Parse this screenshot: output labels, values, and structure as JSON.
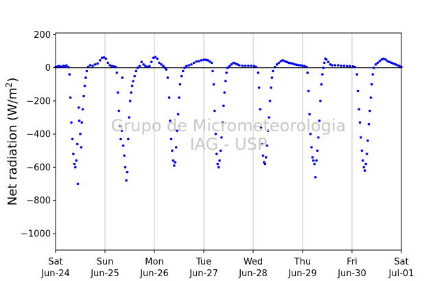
{
  "chart_data": {
    "type": "scatter",
    "title": "",
    "ylabel": "Net radiation (W/m$^2$)",
    "ylabel_parts": {
      "main": "Net radiation (W/m",
      "sup": "2",
      "close": ")"
    },
    "xlabel": "",
    "watermark": [
      "Grupo de Micrometeorologia",
      "IAG - USP"
    ],
    "ylim": [
      -1100,
      210
    ],
    "xlim": [
      0,
      7
    ],
    "yticks": [
      200,
      0,
      -200,
      -400,
      -600,
      -800,
      -1000
    ],
    "ytick_labels": [
      "200",
      "0",
      "−200",
      "−400",
      "−600",
      "−800",
      "−1000"
    ],
    "xticks": [
      {
        "x": 0,
        "day": "Sat",
        "date": "Jun-24"
      },
      {
        "x": 1,
        "day": "Sun",
        "date": "Jun-25"
      },
      {
        "x": 2,
        "day": "Mon",
        "date": "Jun-26"
      },
      {
        "x": 3,
        "day": "Tue",
        "date": "Jun-27"
      },
      {
        "x": 4,
        "day": "Wed",
        "date": "Jun-28"
      },
      {
        "x": 5,
        "day": "Thu",
        "date": "Jun-29"
      },
      {
        "x": 6,
        "day": "Fri",
        "date": "Jun-30"
      },
      {
        "x": 7,
        "day": "Sat",
        "date": "Jul-01"
      }
    ],
    "grid": "vertical",
    "zero_line": true,
    "series": [
      {
        "color": "#0000ff",
        "points": [
          [
            0.0,
            5
          ],
          [
            0.04,
            8
          ],
          [
            0.08,
            10
          ],
          [
            0.12,
            6
          ],
          [
            0.16,
            12
          ],
          [
            0.19,
            8
          ],
          [
            0.22,
            14
          ],
          [
            0.26,
            4
          ],
          [
            0.28,
            -40
          ],
          [
            0.3,
            -180
          ],
          [
            0.32,
            -330
          ],
          [
            0.34,
            -430
          ],
          [
            0.36,
            -520
          ],
          [
            0.38,
            -580
          ],
          [
            0.4,
            -600
          ],
          [
            0.42,
            -560
          ],
          [
            0.44,
            -460
          ],
          [
            0.45,
            -700
          ],
          [
            0.47,
            -240
          ],
          [
            0.48,
            -320
          ],
          [
            0.5,
            -400
          ],
          [
            0.52,
            -480
          ],
          [
            0.53,
            -330
          ],
          [
            0.55,
            -250
          ],
          [
            0.57,
            -170
          ],
          [
            0.59,
            -110
          ],
          [
            0.61,
            -60
          ],
          [
            0.63,
            -20
          ],
          [
            0.66,
            5
          ],
          [
            0.7,
            15
          ],
          [
            0.75,
            12
          ],
          [
            0.8,
            20
          ],
          [
            0.85,
            25
          ],
          [
            0.9,
            45
          ],
          [
            0.94,
            60
          ],
          [
            0.98,
            62
          ],
          [
            1.02,
            55
          ],
          [
            1.06,
            30
          ],
          [
            1.1,
            15
          ],
          [
            1.14,
            10
          ],
          [
            1.18,
            8
          ],
          [
            1.22,
            5
          ],
          [
            1.24,
            -30
          ],
          [
            1.26,
            -150
          ],
          [
            1.28,
            -260
          ],
          [
            1.3,
            -350
          ],
          [
            1.32,
            -430
          ],
          [
            1.34,
            -380
          ],
          [
            1.35,
            -60
          ],
          [
            1.37,
            -470
          ],
          [
            1.39,
            -530
          ],
          [
            1.41,
            -600
          ],
          [
            1.43,
            -680
          ],
          [
            1.45,
            -630
          ],
          [
            1.47,
            -430
          ],
          [
            1.49,
            -300
          ],
          [
            1.51,
            -200
          ],
          [
            1.53,
            -150
          ],
          [
            1.55,
            -110
          ],
          [
            1.57,
            -80
          ],
          [
            1.6,
            -50
          ],
          [
            1.63,
            -20
          ],
          [
            1.66,
            0
          ],
          [
            1.7,
            10
          ],
          [
            1.74,
            35
          ],
          [
            1.78,
            20
          ],
          [
            1.82,
            10
          ],
          [
            1.86,
            5
          ],
          [
            1.9,
            10
          ],
          [
            1.94,
            35
          ],
          [
            1.98,
            60
          ],
          [
            2.02,
            65
          ],
          [
            2.06,
            55
          ],
          [
            2.1,
            30
          ],
          [
            2.14,
            20
          ],
          [
            2.18,
            10
          ],
          [
            2.22,
            0
          ],
          [
            2.24,
            -10
          ],
          [
            2.27,
            -60
          ],
          [
            2.3,
            -180
          ],
          [
            2.32,
            -320
          ],
          [
            2.34,
            -430
          ],
          [
            2.36,
            -500
          ],
          [
            2.38,
            -560
          ],
          [
            2.4,
            -590
          ],
          [
            2.42,
            -570
          ],
          [
            2.44,
            -480
          ],
          [
            2.46,
            -380
          ],
          [
            2.48,
            -280
          ],
          [
            2.5,
            -180
          ],
          [
            2.52,
            -100
          ],
          [
            2.55,
            -50
          ],
          [
            2.58,
            -20
          ],
          [
            2.61,
            0
          ],
          [
            2.65,
            10
          ],
          [
            2.7,
            15
          ],
          [
            2.75,
            20
          ],
          [
            2.8,
            30
          ],
          [
            2.85,
            38
          ],
          [
            2.9,
            40
          ],
          [
            2.95,
            45
          ],
          [
            3.0,
            48
          ],
          [
            3.04,
            48
          ],
          [
            3.08,
            45
          ],
          [
            3.12,
            38
          ],
          [
            3.16,
            30
          ],
          [
            3.18,
            -20
          ],
          [
            3.2,
            -100
          ],
          [
            3.22,
            -260
          ],
          [
            3.24,
            -400
          ],
          [
            3.26,
            -520
          ],
          [
            3.28,
            -580
          ],
          [
            3.3,
            -600
          ],
          [
            3.32,
            -560
          ],
          [
            3.34,
            -500
          ],
          [
            3.36,
            -420
          ],
          [
            3.38,
            -330
          ],
          [
            3.4,
            -230
          ],
          [
            3.42,
            -150
          ],
          [
            3.44,
            -80
          ],
          [
            3.46,
            -30
          ],
          [
            3.48,
            0
          ],
          [
            3.52,
            10
          ],
          [
            3.56,
            20
          ],
          [
            3.6,
            30
          ],
          [
            3.64,
            25
          ],
          [
            3.68,
            20
          ],
          [
            3.72,
            15
          ],
          [
            3.78,
            12
          ],
          [
            3.84,
            12
          ],
          [
            3.9,
            12
          ],
          [
            3.96,
            12
          ],
          [
            4.02,
            10
          ],
          [
            4.06,
            5
          ],
          [
            4.1,
            -30
          ],
          [
            4.12,
            -120
          ],
          [
            4.14,
            -250
          ],
          [
            4.16,
            -360
          ],
          [
            4.18,
            -460
          ],
          [
            4.2,
            -530
          ],
          [
            4.22,
            -570
          ],
          [
            4.24,
            -580
          ],
          [
            4.26,
            -540
          ],
          [
            4.28,
            -470
          ],
          [
            4.3,
            -380
          ],
          [
            4.32,
            -300
          ],
          [
            4.34,
            -200
          ],
          [
            4.36,
            -120
          ],
          [
            4.38,
            -60
          ],
          [
            4.4,
            -20
          ],
          [
            4.44,
            5
          ],
          [
            4.48,
            20
          ],
          [
            4.52,
            30
          ],
          [
            4.56,
            40
          ],
          [
            4.6,
            45
          ],
          [
            4.64,
            40
          ],
          [
            4.68,
            35
          ],
          [
            4.72,
            30
          ],
          [
            4.76,
            28
          ],
          [
            4.8,
            25
          ],
          [
            4.84,
            20
          ],
          [
            4.88,
            18
          ],
          [
            4.92,
            15
          ],
          [
            4.96,
            15
          ],
          [
            5.0,
            12
          ],
          [
            5.04,
            10
          ],
          [
            5.08,
            5
          ],
          [
            5.1,
            -30
          ],
          [
            5.12,
            -140
          ],
          [
            5.14,
            -280
          ],
          [
            5.16,
            -400
          ],
          [
            5.18,
            -480
          ],
          [
            5.2,
            -540
          ],
          [
            5.22,
            -560
          ],
          [
            5.24,
            -580
          ],
          [
            5.26,
            -660
          ],
          [
            5.28,
            -560
          ],
          [
            5.3,
            -500
          ],
          [
            5.32,
            -420
          ],
          [
            5.34,
            -320
          ],
          [
            5.36,
            -200
          ],
          [
            5.38,
            -100
          ],
          [
            5.4,
            -40
          ],
          [
            5.42,
            0
          ],
          [
            5.44,
            30
          ],
          [
            5.46,
            55
          ],
          [
            5.48,
            50
          ],
          [
            5.52,
            35
          ],
          [
            5.56,
            20
          ],
          [
            5.6,
            15
          ],
          [
            5.66,
            15
          ],
          [
            5.72,
            15
          ],
          [
            5.78,
            12
          ],
          [
            5.84,
            12
          ],
          [
            5.9,
            10
          ],
          [
            5.96,
            10
          ],
          [
            6.02,
            8
          ],
          [
            6.06,
            5
          ],
          [
            6.1,
            -40
          ],
          [
            6.12,
            -140
          ],
          [
            6.14,
            -250
          ],
          [
            6.16,
            -330
          ],
          [
            6.18,
            -420
          ],
          [
            6.2,
            -500
          ],
          [
            6.22,
            -560
          ],
          [
            6.24,
            -600
          ],
          [
            6.26,
            -620
          ],
          [
            6.28,
            -580
          ],
          [
            6.3,
            -520
          ],
          [
            6.32,
            -440
          ],
          [
            6.34,
            -340
          ],
          [
            6.36,
            -260
          ],
          [
            6.38,
            -180
          ],
          [
            6.4,
            -100
          ],
          [
            6.42,
            -40
          ],
          [
            6.44,
            0
          ],
          [
            6.48,
            20
          ],
          [
            6.52,
            30
          ],
          [
            6.56,
            40
          ],
          [
            6.6,
            50
          ],
          [
            6.64,
            55
          ],
          [
            6.68,
            50
          ],
          [
            6.72,
            40
          ],
          [
            6.76,
            35
          ],
          [
            6.8,
            30
          ],
          [
            6.84,
            25
          ],
          [
            6.88,
            20
          ],
          [
            6.92,
            15
          ],
          [
            6.96,
            10
          ],
          [
            7.0,
            5
          ]
        ]
      }
    ]
  }
}
